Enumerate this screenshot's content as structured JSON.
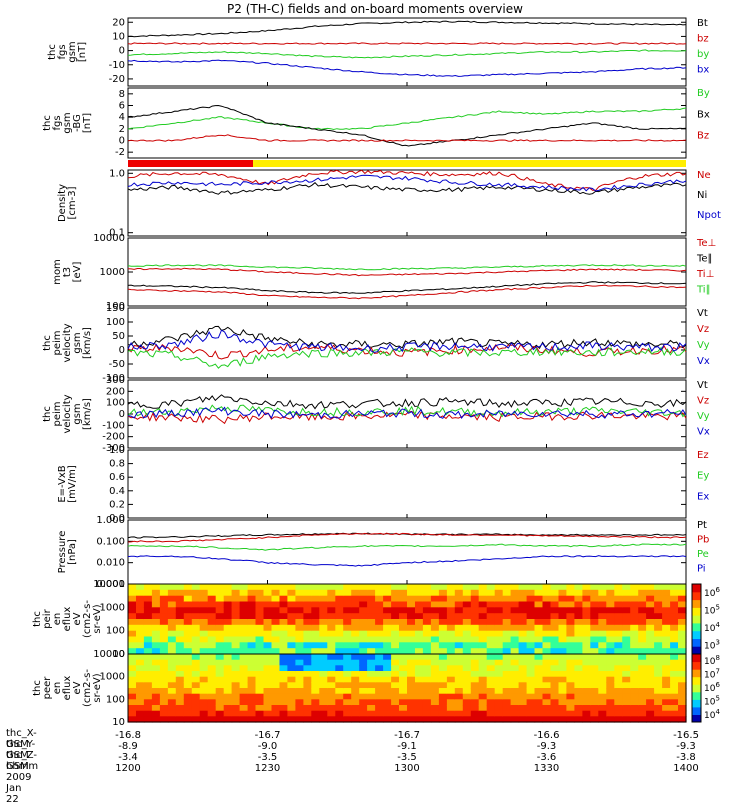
{
  "page_title": "P2 (TH-C) fields and on-board moments overview",
  "colors": {
    "black": "#000000",
    "red": "#cc0000",
    "green": "#22cc22",
    "blue": "#0000cc"
  },
  "chart_data": [
    {
      "type": "line",
      "ylabel": [
        "thc",
        "fgs",
        "gsm",
        "[nT]"
      ],
      "yticks": [
        -20,
        -10,
        0,
        10,
        20
      ],
      "ylim": [
        -25,
        23
      ],
      "series": [
        {
          "name": "Bt",
          "color": "red-black",
          "values": [
            10,
            11,
            12,
            14,
            17,
            19,
            20,
            20.5,
            20,
            19.5,
            19,
            18.5,
            18
          ]
        },
        {
          "name": "bz",
          "values": [
            5,
            5,
            5,
            5,
            5,
            5,
            5,
            5,
            5,
            5,
            5,
            5,
            5
          ]
        },
        {
          "name": "by",
          "values": [
            -3,
            -2,
            -1,
            -2,
            -4,
            -5,
            -4,
            -3,
            -2,
            -1,
            -1,
            0,
            0
          ]
        },
        {
          "name": "bx",
          "values": [
            -7,
            -8,
            -7,
            -9,
            -12,
            -15,
            -17,
            -18,
            -17,
            -16,
            -15,
            -13,
            -12
          ]
        }
      ]
    },
    {
      "type": "line",
      "ylabel": [
        "thc",
        "fgs",
        "gsm",
        "-BG",
        "[nT]"
      ],
      "yticks": [
        -2,
        0,
        2,
        4,
        6,
        8
      ],
      "ylim": [
        -3,
        9
      ],
      "series": [
        {
          "name": "By",
          "values": [
            2,
            3,
            4,
            3,
            2,
            2,
            3,
            4,
            5,
            4.5,
            5,
            5,
            5.5
          ]
        },
        {
          "name": "Bx",
          "values": [
            4,
            5,
            6,
            3,
            2,
            1,
            -1,
            0,
            1,
            2,
            3,
            2,
            2
          ]
        },
        {
          "name": "Bz",
          "values": [
            0,
            0,
            1,
            0,
            0,
            0,
            0,
            0,
            0,
            0,
            0,
            0,
            0
          ]
        }
      ]
    },
    {
      "type": "line",
      "ylabel": [
        "Density",
        "[cm-3]"
      ],
      "yticks_text": [
        "0.1",
        "1.0"
      ],
      "series": [
        {
          "name": "Ne",
          "values": [
            0.8,
            0.9,
            0.85,
            0.6,
            0.9,
            0.95,
            0.9,
            0.85,
            0.9,
            0.6,
            0.5,
            0.8,
            0.9
          ]
        },
        {
          "name": "Ni",
          "values": [
            0.5,
            0.55,
            0.45,
            0.5,
            0.6,
            0.55,
            0.5,
            0.5,
            0.55,
            0.5,
            0.45,
            0.55,
            0.6
          ]
        },
        {
          "name": "Npot",
          "values": [
            0.6,
            0.65,
            0.6,
            0.65,
            0.7,
            0.8,
            0.75,
            0.65,
            0.6,
            0.55,
            0.5,
            0.6,
            0.7
          ]
        }
      ]
    },
    {
      "type": "line",
      "ylabel": [
        "mom",
        "t3",
        "[eV]"
      ],
      "yticks_text": [
        "100",
        "1000",
        "10000"
      ],
      "series": [
        {
          "name": "Te⊥",
          "values": [
            300,
            280,
            260,
            200,
            180,
            170,
            200,
            250,
            300,
            350,
            400,
            380,
            350
          ]
        },
        {
          "name": "Te∥",
          "values": [
            400,
            380,
            350,
            280,
            250,
            240,
            280,
            320,
            380,
            450,
            500,
            480,
            450
          ]
        },
        {
          "name": "Ti⊥",
          "values": [
            1200,
            1250,
            1200,
            1000,
            900,
            800,
            850,
            900,
            1000,
            1100,
            1200,
            1150,
            1100
          ]
        },
        {
          "name": "Ti∥",
          "values": [
            1500,
            1600,
            1550,
            1400,
            1300,
            1200,
            1250,
            1300,
            1400,
            1500,
            1600,
            1550,
            1500
          ]
        }
      ]
    },
    {
      "type": "line",
      "ylabel": [
        "thc",
        "peim",
        "velocity",
        "gsm",
        "[km/s]"
      ],
      "yticks": [
        -100,
        -50,
        0,
        50,
        100,
        150
      ],
      "ylim": [
        -100,
        150
      ],
      "series": [
        {
          "name": "Vt",
          "values": [
            20,
            40,
            80,
            40,
            20,
            20,
            20,
            30,
            20,
            20,
            30,
            20,
            20
          ]
        },
        {
          "name": "Vz",
          "values": [
            0,
            10,
            -20,
            0,
            10,
            0,
            -10,
            0,
            10,
            0,
            -10,
            0,
            0
          ]
        },
        {
          "name": "Vy",
          "values": [
            -10,
            -20,
            -60,
            -20,
            -10,
            -10,
            -5,
            -10,
            -10,
            -5,
            -10,
            -5,
            -5
          ]
        },
        {
          "name": "Vx",
          "values": [
            10,
            20,
            60,
            20,
            10,
            5,
            10,
            15,
            10,
            10,
            15,
            10,
            10
          ]
        }
      ]
    },
    {
      "type": "line",
      "ylabel": [
        "thc",
        "peim",
        "velocity",
        "gsm",
        "[km/s]"
      ],
      "yticks": [
        -300,
        -200,
        -100,
        0,
        100,
        200,
        300
      ],
      "ylim": [
        -300,
        300
      ],
      "series": [
        {
          "name": "Vt",
          "values": [
            80,
            90,
            150,
            100,
            80,
            90,
            100,
            110,
            90,
            100,
            110,
            100,
            90
          ]
        },
        {
          "name": "Vz",
          "values": [
            -20,
            -30,
            -50,
            -20,
            -30,
            -20,
            -10,
            -20,
            -30,
            -20,
            -10,
            -20,
            -20
          ]
        },
        {
          "name": "Vy",
          "values": [
            10,
            20,
            60,
            30,
            20,
            20,
            30,
            20,
            10,
            20,
            30,
            20,
            10
          ]
        },
        {
          "name": "Vx",
          "values": [
            -10,
            10,
            30,
            0,
            -10,
            0,
            10,
            -10,
            0,
            10,
            0,
            0,
            10
          ]
        }
      ]
    },
    {
      "type": "line",
      "ylabel": [
        "E=-VxB",
        "[mV/m]"
      ],
      "yticks_text": [
        "0.0",
        "0.2",
        "0.4",
        "0.6",
        "0.8",
        "1.0"
      ],
      "series": [
        {
          "name": "Ez",
          "values": []
        },
        {
          "name": "Ey",
          "values": []
        },
        {
          "name": "Ex",
          "values": []
        }
      ]
    },
    {
      "type": "line",
      "ylabel": [
        "Pressure",
        "[nPa]"
      ],
      "yticks_text": [
        "0.001",
        "0.010",
        "0.100",
        "1.000"
      ],
      "series": [
        {
          "name": "Pt",
          "values": [
            0.15,
            0.16,
            0.18,
            0.2,
            0.22,
            0.23,
            0.22,
            0.21,
            0.21,
            0.2,
            0.2,
            0.2,
            0.2
          ]
        },
        {
          "name": "Pb",
          "values": [
            0.1,
            0.1,
            0.12,
            0.15,
            0.2,
            0.23,
            0.22,
            0.2,
            0.2,
            0.18,
            0.17,
            0.16,
            0.15
          ]
        },
        {
          "name": "Pe",
          "values": [
            0.06,
            0.06,
            0.05,
            0.04,
            0.05,
            0.06,
            0.06,
            0.06,
            0.07,
            0.06,
            0.06,
            0.07,
            0.07
          ]
        },
        {
          "name": "Pi",
          "values": [
            0.02,
            0.02,
            0.015,
            0.01,
            0.008,
            0.007,
            0.01,
            0.012,
            0.015,
            0.02,
            0.02,
            0.02,
            0.02
          ]
        }
      ]
    },
    {
      "type": "heatmap",
      "ylabel": [
        "thc",
        "peir",
        "en",
        "eflux",
        "eV",
        "(cm2-s-",
        "sr-eV)"
      ],
      "yticks_text": [
        "10",
        "100",
        "1000",
        "10000"
      ],
      "colorbar_labels": [
        "10^3",
        "10^4",
        "10^5",
        "10^6"
      ]
    },
    {
      "type": "heatmap",
      "ylabel": [
        "thc",
        "peer",
        "en",
        "eflux",
        "eV",
        "(cm2-s-",
        "sr-eV)"
      ],
      "yticks_text": [
        "10",
        "100",
        "1000",
        "10000"
      ],
      "colorbar_labels": [
        "10^4",
        "10^5",
        "10^6",
        "10^7",
        "10^8"
      ]
    }
  ],
  "x_axis": {
    "row_labels": [
      "thc_X-GSM",
      "thc_Y-GSM",
      "thc_Z-GSM",
      "hhmm",
      "2009 Jan 22"
    ],
    "columns": [
      [
        "-16.8",
        "-8.9",
        "-3.4",
        "1200"
      ],
      [
        "-16.7",
        "-9.0",
        "-3.5",
        "1230"
      ],
      [
        "-16.7",
        "-9.1",
        "-3.5",
        "1300"
      ],
      [
        "-16.6",
        "-9.3",
        "-3.6",
        "1330"
      ],
      [
        "-16.5",
        "-9.3",
        "-3.8",
        "1400"
      ]
    ]
  }
}
